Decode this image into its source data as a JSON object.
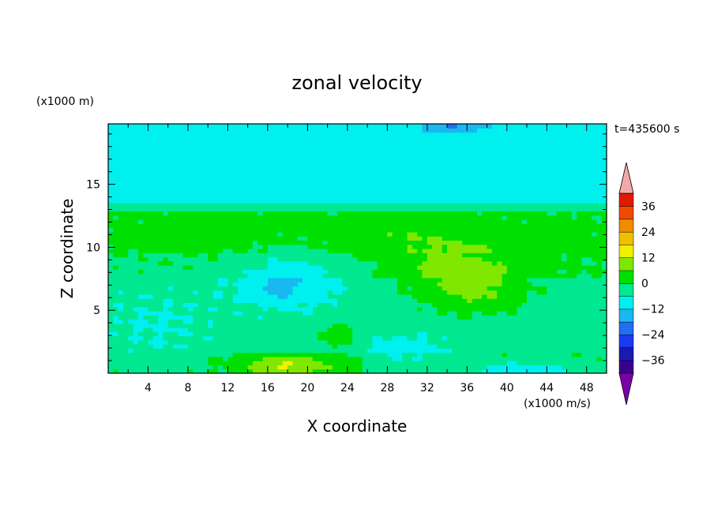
{
  "chart_data": {
    "type": "heatmap",
    "title": "zonal velocity",
    "xlabel": "X coordinate",
    "ylabel": "Z coordinate",
    "y_unit": "(x1000 m)",
    "colorbar_unit": "(x1000 m/s)",
    "time_label": "t=435600 s",
    "xlim": [
      0,
      50
    ],
    "ylim": [
      0,
      19.8
    ],
    "x_ticks": [
      "4",
      "8",
      "12",
      "16",
      "20",
      "24",
      "28",
      "32",
      "36",
      "40",
      "44",
      "48"
    ],
    "y_ticks": [
      "5",
      "10",
      "15"
    ],
    "colorbar": {
      "levels": [
        -42,
        -36,
        -30,
        -24,
        -18,
        -12,
        -6,
        0,
        6,
        12,
        18,
        24,
        30,
        36,
        42
      ],
      "tick_labels": [
        "36",
        "24",
        "12",
        "0",
        "−12",
        "−24",
        "−36"
      ],
      "colors": [
        "#7a00a8",
        "#3a0090",
        "#1a1ab0",
        "#1a3af0",
        "#1e70f0",
        "#18b8f0",
        "#00f0f0",
        "#00e890",
        "#00e000",
        "#80e800",
        "#f0f000",
        "#f0c000",
        "#f08c00",
        "#f04a00",
        "#e01a00",
        "#f4a8a8"
      ]
    },
    "features": [
      {
        "x": 18,
        "z": 0.6,
        "value": 14,
        "sx": 5,
        "sz": 0.8
      },
      {
        "x": 23,
        "z": 3.0,
        "value": 8,
        "sx": 2,
        "sz": 1.0
      },
      {
        "x": 35,
        "z": 8.0,
        "value": 10,
        "sx": 6,
        "sz": 2.2
      },
      {
        "x": 37,
        "z": 6.0,
        "value": 6,
        "sx": 5,
        "sz": 1.6
      },
      {
        "x": 18,
        "z": 7.5,
        "value": -9,
        "sx": 5,
        "sz": 2.2
      },
      {
        "x": 17,
        "z": 6.5,
        "value": -7,
        "sx": 1,
        "sz": 0.5
      },
      {
        "x": 35,
        "z": 19.6,
        "value": -10,
        "sx": 3,
        "sz": 0.4
      },
      {
        "x": 42,
        "z": 0.3,
        "value": -10,
        "sx": 5,
        "sz": 0.6
      },
      {
        "x": 30,
        "z": 1.8,
        "value": -6,
        "sx": 4,
        "sz": 1.3
      },
      {
        "x": 10,
        "z": 11.0,
        "value": 2,
        "sx": 10,
        "sz": 2.0
      },
      {
        "x": 30,
        "z": 11.0,
        "value": 4,
        "sx": 8,
        "sz": 1.5
      },
      {
        "x": 45,
        "z": 9.0,
        "value": 2,
        "sx": 6,
        "sz": 3.0
      },
      {
        "x": 5,
        "z": 4.0,
        "value": -3,
        "sx": 6,
        "sz": 3.0
      }
    ]
  }
}
